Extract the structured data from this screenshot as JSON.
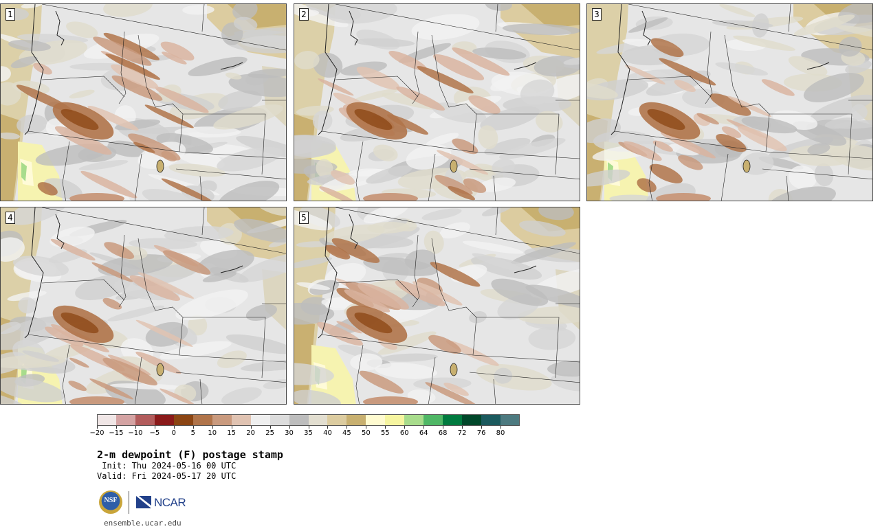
{
  "panels": [
    {
      "label": "1"
    },
    {
      "label": "2"
    },
    {
      "label": "3"
    },
    {
      "label": "4"
    },
    {
      "label": "5"
    }
  ],
  "colorbar": {
    "colors": [
      "#f0e6e6",
      "#d4a3a3",
      "#b25c5c",
      "#8a1a1a",
      "#8b4513",
      "#b0744a",
      "#c99a7e",
      "#e0c3b2",
      "#efefef",
      "#dcdcdc",
      "#bdbdbd",
      "#e2ded0",
      "#dccca0",
      "#c8b070",
      "#fffbd0",
      "#f6f5a0",
      "#a8dc8c",
      "#4fb766",
      "#007a3f",
      "#00472a",
      "#1b5a5e",
      "#4d7a80"
    ],
    "tick_labels": [
      "−20",
      "−15",
      "−10",
      "−5",
      "0",
      "5",
      "10",
      "15",
      "20",
      "25",
      "30",
      "35",
      "40",
      "45",
      "50",
      "55",
      "60",
      "64",
      "68",
      "72",
      "76",
      "80"
    ]
  },
  "title": "2-m dewpoint (F) postage stamp",
  "init": " Init: Thu 2024-05-16 00 UTC",
  "valid": "Valid: Fri 2024-05-17 20 UTC",
  "logo": {
    "nsf": "NSF",
    "ncar": "NCAR"
  },
  "url": "ensemble.ucar.edu"
}
